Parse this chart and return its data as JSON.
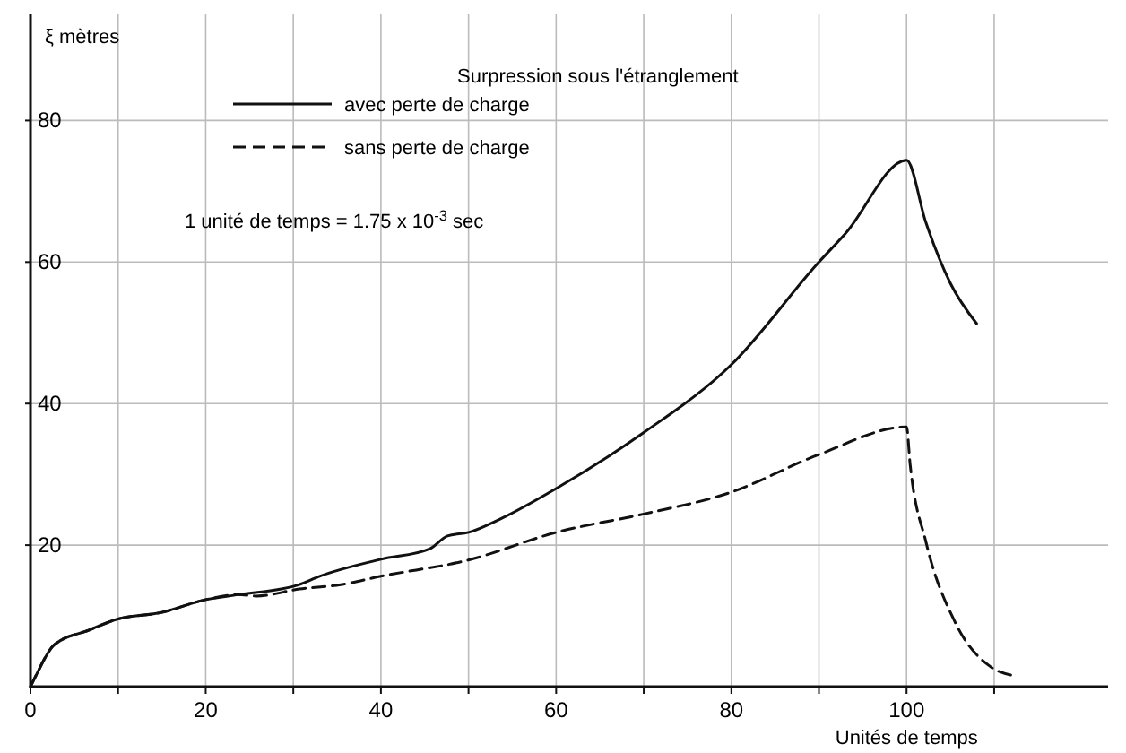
{
  "chart_data": {
    "type": "line",
    "title": "Surpression sous l'étranglement",
    "xlabel": "Unités de temps",
    "ylabel": "ξ mètres",
    "annotations": [
      "1 unité de temps = 1.75 x 10$^{-3}$ sec"
    ],
    "series": [
      {
        "name": "avec perte de charge",
        "color": "#111111",
        "line_style": "solid",
        "x": [
          0,
          0.6,
          2.7,
          6.7,
          9.8,
          15,
          20,
          23.7,
          30.6,
          33,
          40,
          45.6,
          47.6,
          50,
          53.8,
          60,
          70,
          80,
          90,
          93,
          100,
          102.2,
          105,
          108
        ],
        "values": [
          0,
          1.5,
          5.9,
          8,
          9.5,
          10.5,
          12.3,
          13,
          14.4,
          15.6,
          18,
          19.5,
          21.3,
          21.8,
          23.8,
          28,
          35.9,
          45.5,
          60,
          64,
          74.4,
          65.6,
          57,
          51.3
        ]
      },
      {
        "name": "sans perte de charge",
        "color": "#111111",
        "line_style": "dashed",
        "x": [
          0,
          0.6,
          2.7,
          6.7,
          9.8,
          15,
          20,
          23.7,
          25.8,
          30.7,
          35.4,
          40,
          50,
          60,
          70,
          79.8,
          90,
          100,
          100.4,
          102.2,
          105.5,
          109.6,
          112.5
        ],
        "values": [
          0,
          1.5,
          5.9,
          8,
          9.5,
          10.5,
          12.3,
          13,
          12.8,
          13.8,
          14.4,
          15.6,
          17.9,
          21.8,
          24.4,
          27.4,
          32.8,
          36.7,
          31.5,
          20.5,
          9.2,
          2.8,
          1.5
        ]
      }
    ],
    "xlim": [
      0,
      123
    ],
    "ylim": [
      0,
      95
    ],
    "xticks": [
      0,
      {
        "value": 10,
        "label": null
      },
      20,
      {
        "value": 30,
        "label": null
      },
      40,
      {
        "value": 50,
        "label": null
      },
      60,
      {
        "value": 70,
        "label": null
      },
      80,
      {
        "value": 90,
        "label": null
      },
      100,
      {
        "value": 110,
        "label": null
      }
    ],
    "yticks": [
      20,
      40,
      60,
      80
    ],
    "grid": true,
    "legend": "top left",
    "marker": "none"
  }
}
